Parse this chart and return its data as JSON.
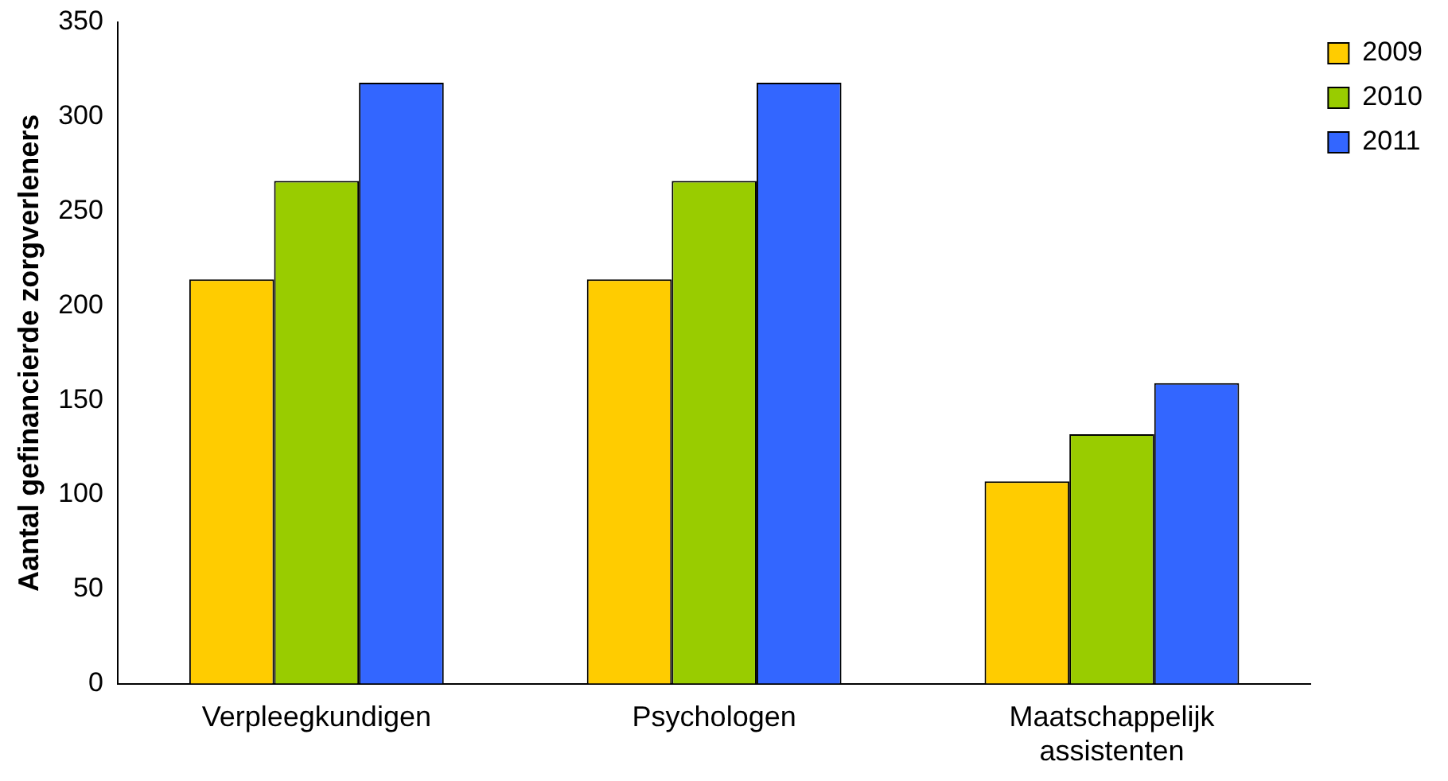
{
  "chart_data": {
    "type": "bar",
    "ylabel": "Aantal gefinancierde zorgverleners",
    "categories": [
      "Verpleegkundigen",
      "Psychologen",
      "Maatschappelijk assistenten"
    ],
    "series": [
      {
        "name": "2009",
        "color": "#ffcc00",
        "values": [
          214,
          214,
          107
        ]
      },
      {
        "name": "2010",
        "color": "#99cc00",
        "values": [
          266,
          266,
          132
        ]
      },
      {
        "name": "2011",
        "color": "#3366ff",
        "values": [
          318,
          318,
          159
        ]
      }
    ],
    "ylim": [
      0,
      350
    ],
    "yticks": [
      0,
      50,
      100,
      150,
      200,
      250,
      300,
      350
    ],
    "grid": false,
    "legend": "top right"
  }
}
